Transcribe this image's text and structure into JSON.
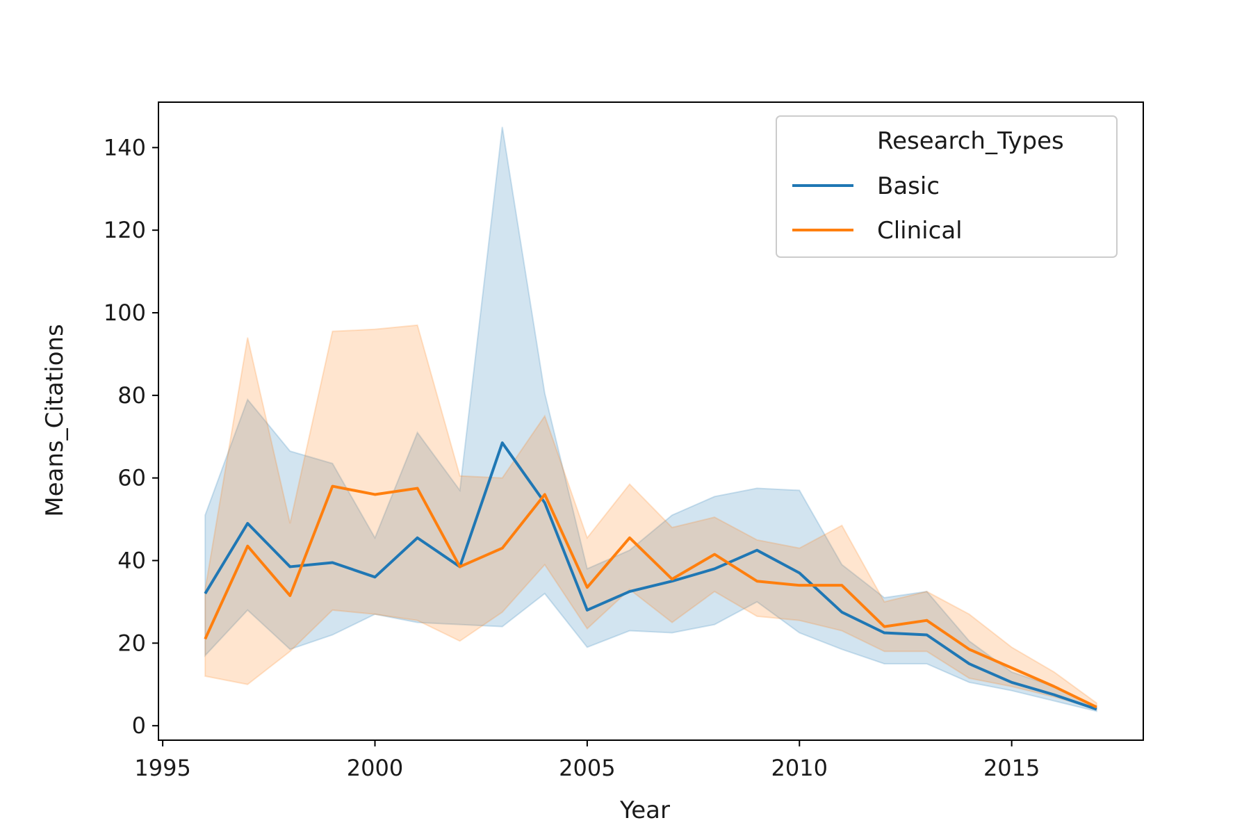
{
  "chart_data": {
    "type": "line",
    "title": "",
    "xlabel": "Year",
    "ylabel": "Means_Citations",
    "xlim": [
      1994.9,
      2018.1
    ],
    "ylim": [
      -3.5,
      151
    ],
    "xticks": [
      1995,
      2000,
      2005,
      2010,
      2015
    ],
    "yticks": [
      0,
      20,
      40,
      60,
      80,
      100,
      120,
      140
    ],
    "grid": false,
    "legend": {
      "title": "Research_Types",
      "placement": "top-right"
    },
    "x": [
      1996,
      1997,
      1998,
      1999,
      2000,
      2001,
      2002,
      2003,
      2004,
      2005,
      2006,
      2007,
      2008,
      2009,
      2010,
      2011,
      2012,
      2013,
      2014,
      2015,
      2016,
      2017
    ],
    "series": [
      {
        "name": "Basic",
        "color": "#1f77b4",
        "values": [
          32,
          49,
          38.5,
          39.5,
          36,
          45.5,
          38.5,
          68.5,
          54,
          28,
          32.5,
          35,
          38,
          42.5,
          37,
          27.5,
          22.5,
          22,
          15,
          10.5,
          7.5,
          4
        ],
        "ci_low": [
          17,
          28,
          18.5,
          22,
          27,
          25,
          24.5,
          24,
          32,
          19,
          23,
          22.5,
          24.5,
          30,
          22.5,
          18.5,
          15,
          15,
          10.5,
          8.5,
          6,
          3.5
        ],
        "ci_high": [
          51,
          79,
          66.5,
          63.5,
          45.5,
          71,
          57,
          145,
          80.5,
          38,
          42.5,
          51,
          55.5,
          57.5,
          57,
          39,
          31,
          32.5,
          20.5,
          13,
          9.5,
          4.5
        ]
      },
      {
        "name": "Clinical",
        "color": "#ff7f0e",
        "values": [
          21,
          43.5,
          31.5,
          58,
          56,
          57.5,
          38.5,
          43,
          56,
          33.5,
          45.5,
          35.5,
          41.5,
          35,
          34,
          34,
          24,
          25.5,
          18.5,
          14,
          9.5,
          4.5
        ],
        "ci_low": [
          12,
          10,
          18,
          28,
          27,
          25.5,
          20.5,
          27.5,
          39,
          23.5,
          33,
          25,
          32.5,
          26.5,
          25.5,
          23,
          18,
          18,
          11.5,
          9.5,
          7,
          4
        ],
        "ci_high": [
          33,
          94,
          49,
          95.5,
          96,
          97,
          60.5,
          60,
          75,
          45.5,
          58.5,
          48,
          50.5,
          45,
          43,
          48.5,
          30,
          32.5,
          27,
          19,
          13,
          5.5
        ]
      }
    ]
  }
}
